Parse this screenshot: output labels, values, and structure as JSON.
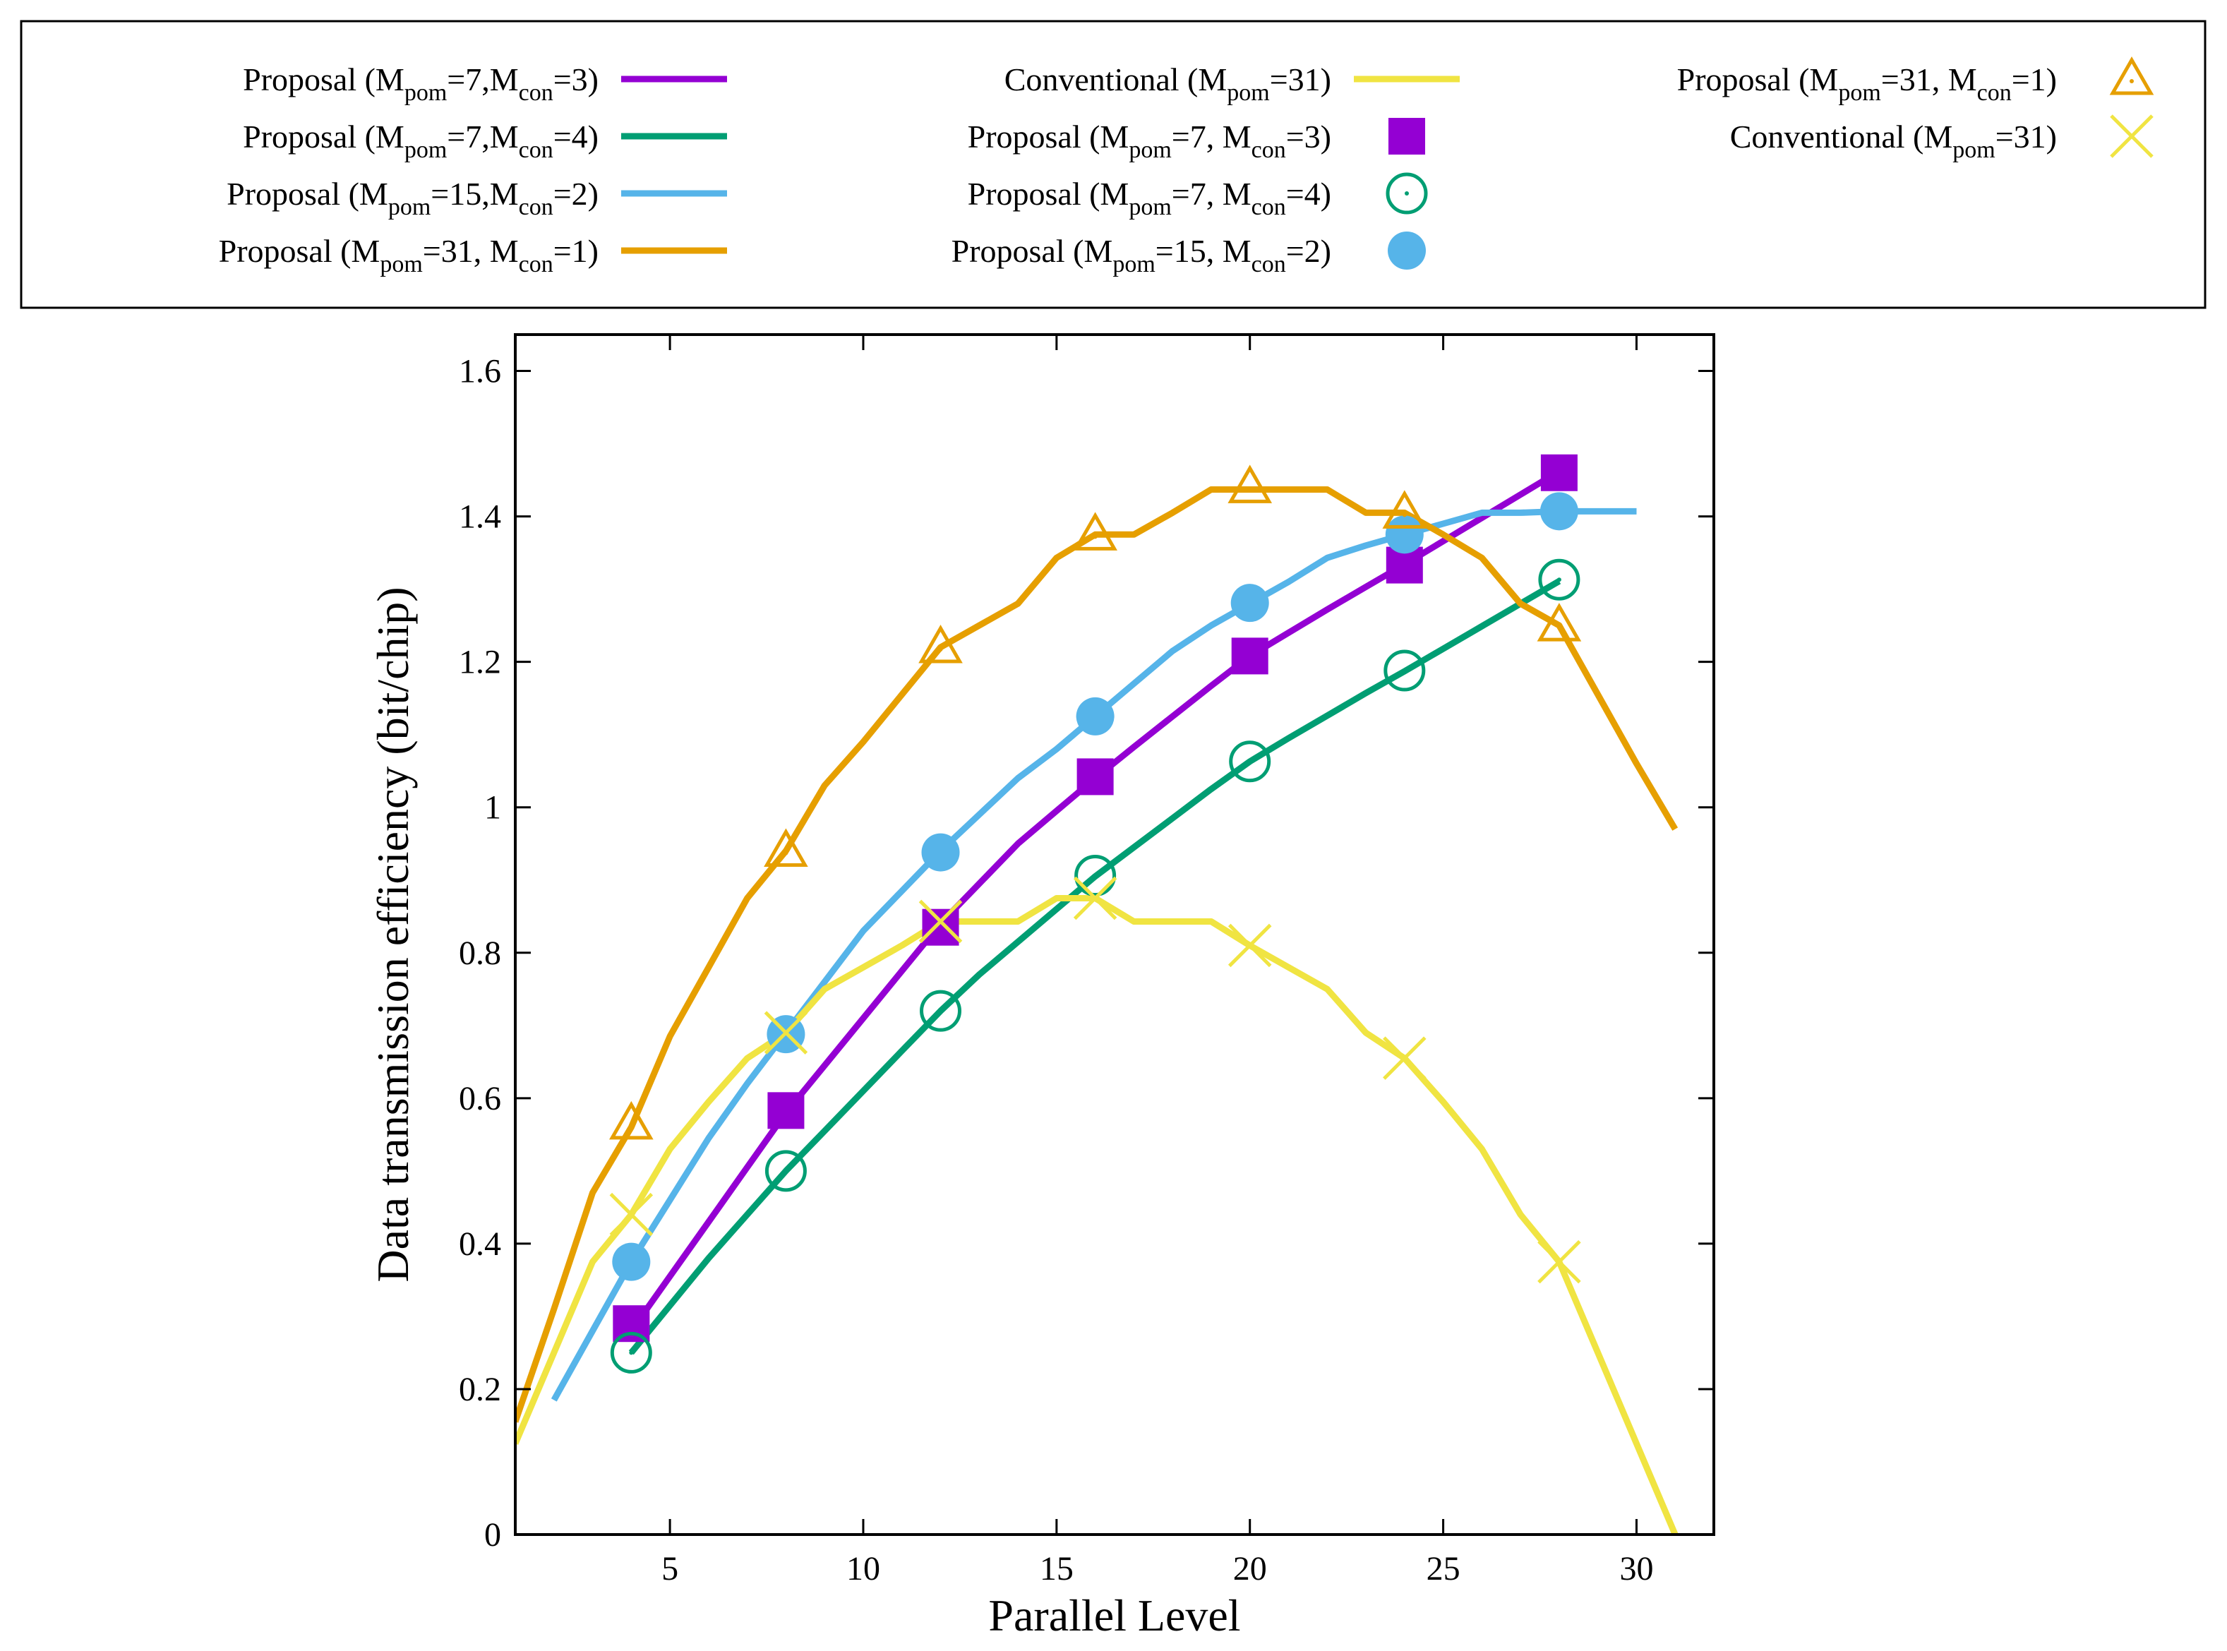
{
  "chart_data": {
    "type": "line",
    "xlabel": "Parallel Level",
    "ylabel": "Data transmission efficiency (bit/chip)",
    "xlim": [
      1,
      32
    ],
    "ylim": [
      0,
      1.65
    ],
    "x_ticks": [
      5,
      10,
      15,
      20,
      25,
      30
    ],
    "y_ticks": [
      0,
      0.2,
      0.4,
      0.6,
      0.8,
      1,
      1.2,
      1.4,
      1.6
    ],
    "x_tick_labels": [
      "5",
      "10",
      "15",
      "20",
      "25",
      "30"
    ],
    "y_tick_labels": [
      "0",
      "0.2",
      "0.4",
      "0.6",
      "0.8",
      "1",
      "1.2",
      "1.4",
      "1.6"
    ],
    "grid": false,
    "legend_position": "top (above plot, boxed, 3 columns)",
    "legend": [
      {
        "label": {
          "pre": "Proposal (M",
          "s1": "pom",
          "mid": "=7,M",
          "s2": "con",
          "post": "=3)"
        },
        "kind": "line",
        "color": "#9400d3"
      },
      {
        "label": {
          "pre": "Proposal (M",
          "s1": "pom",
          "mid": "=7,M",
          "s2": "con",
          "post": "=4)"
        },
        "kind": "line",
        "color": "#009e73"
      },
      {
        "label": {
          "pre": "Proposal (M",
          "s1": "pom",
          "mid": "=15,M",
          "s2": "con",
          "post": "=2)"
        },
        "kind": "line",
        "color": "#56b4e9"
      },
      {
        "label": {
          "pre": "Proposal (M",
          "s1": "pom",
          "mid": "=31, M",
          "s2": "con",
          "post": "=1)"
        },
        "kind": "line",
        "color": "#e69f00"
      },
      {
        "label": {
          "pre": "Conventional (M",
          "s1": "pom",
          "mid": "=31)",
          "s2": "",
          "post": ""
        },
        "kind": "line",
        "color": "#f0e442"
      },
      {
        "label": {
          "pre": "Proposal (M",
          "s1": "pom",
          "mid": "=7, M",
          "s2": "con",
          "post": "=3)"
        },
        "kind": "marker",
        "marker": "square",
        "color": "#9400d3"
      },
      {
        "label": {
          "pre": "Proposal (M",
          "s1": "pom",
          "mid": "=7, M",
          "s2": "con",
          "post": "=4)"
        },
        "kind": "marker",
        "marker": "open-circle",
        "color": "#009e73"
      },
      {
        "label": {
          "pre": "Proposal (M",
          "s1": "pom",
          "mid": "=15, M",
          "s2": "con",
          "post": "=2)"
        },
        "kind": "marker",
        "marker": "filled-circle",
        "color": "#56b4e9"
      },
      {
        "label": {
          "pre": "Proposal (M",
          "s1": "pom",
          "mid": "=31, M",
          "s2": "con",
          "post": "=1)"
        },
        "kind": "marker",
        "marker": "open-triangle",
        "color": "#e69f00"
      },
      {
        "label": {
          "pre": "Conventional (M",
          "s1": "pom",
          "mid": "=31)",
          "s2": "",
          "post": ""
        },
        "kind": "marker",
        "marker": "cross",
        "color": "#f0e442"
      }
    ],
    "lines": [
      {
        "color": "#9400d3",
        "x": [
          4,
          5,
          6,
          7,
          8,
          9,
          10,
          11,
          12,
          13,
          14,
          15,
          16,
          17,
          18,
          19,
          20,
          21,
          22,
          23,
          24,
          25,
          26,
          27,
          28
        ],
        "y": [
          0.28,
          0.355,
          0.43,
          0.505,
          0.58,
          0.645,
          0.71,
          0.775,
          0.84,
          0.895,
          0.95,
          0.995,
          1.04,
          1.083,
          1.125,
          1.167,
          1.208,
          1.24,
          1.272,
          1.303,
          1.334,
          1.366,
          1.398,
          1.43,
          1.462
        ]
      },
      {
        "color": "#009e73",
        "x": [
          4,
          5,
          6,
          7,
          8,
          9,
          10,
          11,
          12,
          13,
          14,
          15,
          16,
          17,
          18,
          19,
          20,
          21,
          22,
          23,
          24,
          25,
          26,
          27,
          28
        ],
        "y": [
          0.25,
          0.315,
          0.38,
          0.44,
          0.5,
          0.555,
          0.61,
          0.665,
          0.72,
          0.77,
          0.815,
          0.86,
          0.905,
          0.945,
          0.985,
          1.025,
          1.063,
          1.095,
          1.126,
          1.157,
          1.187,
          1.218,
          1.249,
          1.28,
          1.311
        ]
      },
      {
        "color": "#56b4e9",
        "x": [
          2,
          3,
          4,
          5,
          6,
          7,
          8,
          9,
          10,
          11,
          12,
          13,
          14,
          15,
          16,
          17,
          18,
          19,
          20,
          21,
          22,
          23,
          24,
          25,
          26,
          27,
          28,
          29,
          30
        ],
        "y": [
          0.185,
          0.28,
          0.375,
          0.46,
          0.545,
          0.62,
          0.69,
          0.76,
          0.83,
          0.885,
          0.94,
          0.99,
          1.04,
          1.08,
          1.125,
          1.17,
          1.215,
          1.25,
          1.28,
          1.31,
          1.343,
          1.36,
          1.375,
          1.39,
          1.405,
          1.405,
          1.407,
          1.407,
          1.407
        ]
      },
      {
        "color": "#e69f00",
        "x": [
          1,
          2,
          3,
          4,
          5,
          6,
          7,
          8,
          9,
          10,
          11,
          12,
          13,
          14,
          15,
          16,
          17,
          18,
          19,
          20,
          21,
          22,
          23,
          24,
          25,
          26,
          27,
          28,
          29,
          30,
          31
        ],
        "y": [
          0.155,
          0.31,
          0.47,
          0.56,
          0.685,
          0.78,
          0.875,
          0.94,
          1.03,
          1.09,
          1.155,
          1.22,
          1.25,
          1.28,
          1.343,
          1.375,
          1.375,
          1.405,
          1.437,
          1.437,
          1.437,
          1.437,
          1.405,
          1.405,
          1.375,
          1.343,
          1.28,
          1.25,
          1.155,
          1.06,
          0.97
        ]
      },
      {
        "color": "#f0e442",
        "x": [
          1,
          2,
          3,
          4,
          5,
          6,
          7,
          8,
          9,
          10,
          11,
          12,
          13,
          14,
          15,
          16,
          17,
          18,
          19,
          20,
          21,
          22,
          23,
          24,
          25,
          26,
          27,
          28,
          29,
          30,
          31
        ],
        "y": [
          0.125,
          0.25,
          0.375,
          0.44,
          0.53,
          0.595,
          0.655,
          0.69,
          0.75,
          0.78,
          0.81,
          0.843,
          0.843,
          0.843,
          0.875,
          0.875,
          0.843,
          0.843,
          0.843,
          0.81,
          0.78,
          0.75,
          0.69,
          0.655,
          0.595,
          0.53,
          0.44,
          0.375,
          0.25,
          0.125,
          0.0
        ]
      }
    ],
    "markers": [
      {
        "marker": "square",
        "color": "#9400d3",
        "x": [
          4,
          8,
          12,
          16,
          20,
          24,
          28
        ],
        "y": [
          0.29,
          0.583,
          0.835,
          1.042,
          1.208,
          1.333,
          1.46
        ]
      },
      {
        "marker": "open-circle",
        "color": "#009e73",
        "x": [
          4,
          8,
          12,
          16,
          20,
          24,
          28
        ],
        "y": [
          0.25,
          0.5,
          0.72,
          0.906,
          1.063,
          1.188,
          1.313
        ]
      },
      {
        "marker": "filled-circle",
        "color": "#56b4e9",
        "x": [
          4,
          8,
          12,
          16,
          20,
          24,
          28
        ],
        "y": [
          0.375,
          0.688,
          0.938,
          1.125,
          1.281,
          1.375,
          1.407
        ]
      },
      {
        "marker": "open-triangle",
        "color": "#e69f00",
        "x": [
          4,
          8,
          12,
          16,
          20,
          24,
          28
        ],
        "y": [
          0.565,
          0.94,
          1.22,
          1.375,
          1.44,
          1.405,
          1.25
        ]
      },
      {
        "marker": "cross",
        "color": "#f0e442",
        "x": [
          4,
          8,
          12,
          16,
          20,
          24,
          28
        ],
        "y": [
          0.44,
          0.69,
          0.843,
          0.875,
          0.81,
          0.655,
          0.375
        ]
      }
    ]
  }
}
